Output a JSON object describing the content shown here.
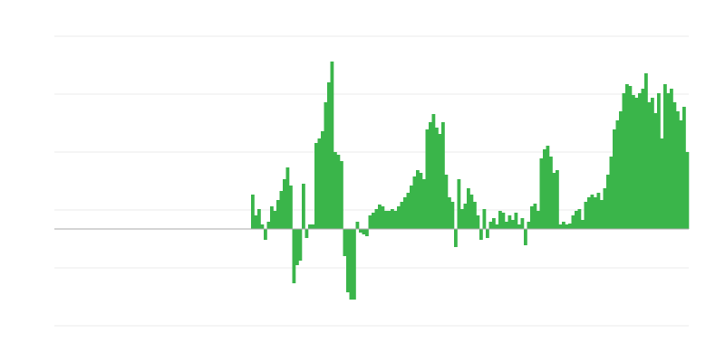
{
  "chart_data": {
    "type": "bar",
    "color": "#3ab54a",
    "grid": true,
    "xlim": [
      0,
      200
    ],
    "ylim": [
      -107,
      213
    ],
    "yticks": [
      -107,
      -43,
      21,
      85,
      149,
      213
    ],
    "x": [
      62,
      63,
      64,
      65,
      66,
      67,
      68,
      69,
      70,
      71,
      72,
      73,
      74,
      75,
      76,
      77,
      78,
      79,
      80,
      81,
      82,
      83,
      84,
      85,
      86,
      87,
      88,
      89,
      90,
      91,
      92,
      93,
      94,
      95,
      96,
      97,
      98,
      99,
      100,
      101,
      102,
      103,
      104,
      105,
      106,
      107,
      108,
      109,
      110,
      111,
      112,
      113,
      114,
      115,
      116,
      117,
      118,
      119,
      120,
      121,
      122,
      123,
      124,
      125,
      126,
      127,
      128,
      129,
      130,
      131,
      132,
      133,
      134,
      135,
      136,
      137,
      138,
      139,
      140,
      141,
      142,
      143,
      144,
      145,
      146,
      147,
      148,
      149,
      150,
      151,
      152,
      153,
      154,
      155,
      156,
      157,
      158,
      159,
      160,
      161,
      162,
      163,
      164,
      165,
      166,
      167,
      168,
      169,
      170,
      171,
      172,
      173,
      174,
      175,
      176,
      177,
      178,
      179,
      180,
      181,
      182,
      183,
      184,
      185,
      186,
      187,
      188,
      189,
      190,
      191,
      192,
      193,
      194,
      195,
      196,
      197,
      198,
      199
    ],
    "values": [
      38,
      15,
      22,
      5,
      -12,
      8,
      25,
      20,
      32,
      42,
      55,
      68,
      48,
      -60,
      -40,
      -35,
      50,
      -10,
      5,
      5,
      95,
      100,
      108,
      140,
      162,
      185,
      85,
      82,
      75,
      -30,
      -70,
      -78,
      -78,
      8,
      -4,
      -6,
      -8,
      15,
      18,
      22,
      27,
      25,
      20,
      20,
      22,
      20,
      25,
      30,
      35,
      40,
      48,
      58,
      65,
      62,
      55,
      110,
      118,
      127,
      112,
      105,
      118,
      60,
      35,
      30,
      -20,
      55,
      22,
      28,
      45,
      38,
      30,
      15,
      -12,
      22,
      -10,
      8,
      12,
      5,
      20,
      18,
      8,
      15,
      10,
      18,
      5,
      12,
      -18,
      8,
      25,
      28,
      20,
      78,
      88,
      92,
      80,
      62,
      65,
      5,
      8,
      5,
      6,
      15,
      20,
      22,
      10,
      30,
      35,
      38,
      35,
      40,
      32,
      45,
      60,
      80,
      110,
      120,
      130,
      150,
      160,
      158,
      148,
      145,
      150,
      155,
      172,
      140,
      145,
      128,
      150,
      100,
      160,
      150,
      155,
      140,
      130,
      120,
      135,
      85
    ]
  }
}
